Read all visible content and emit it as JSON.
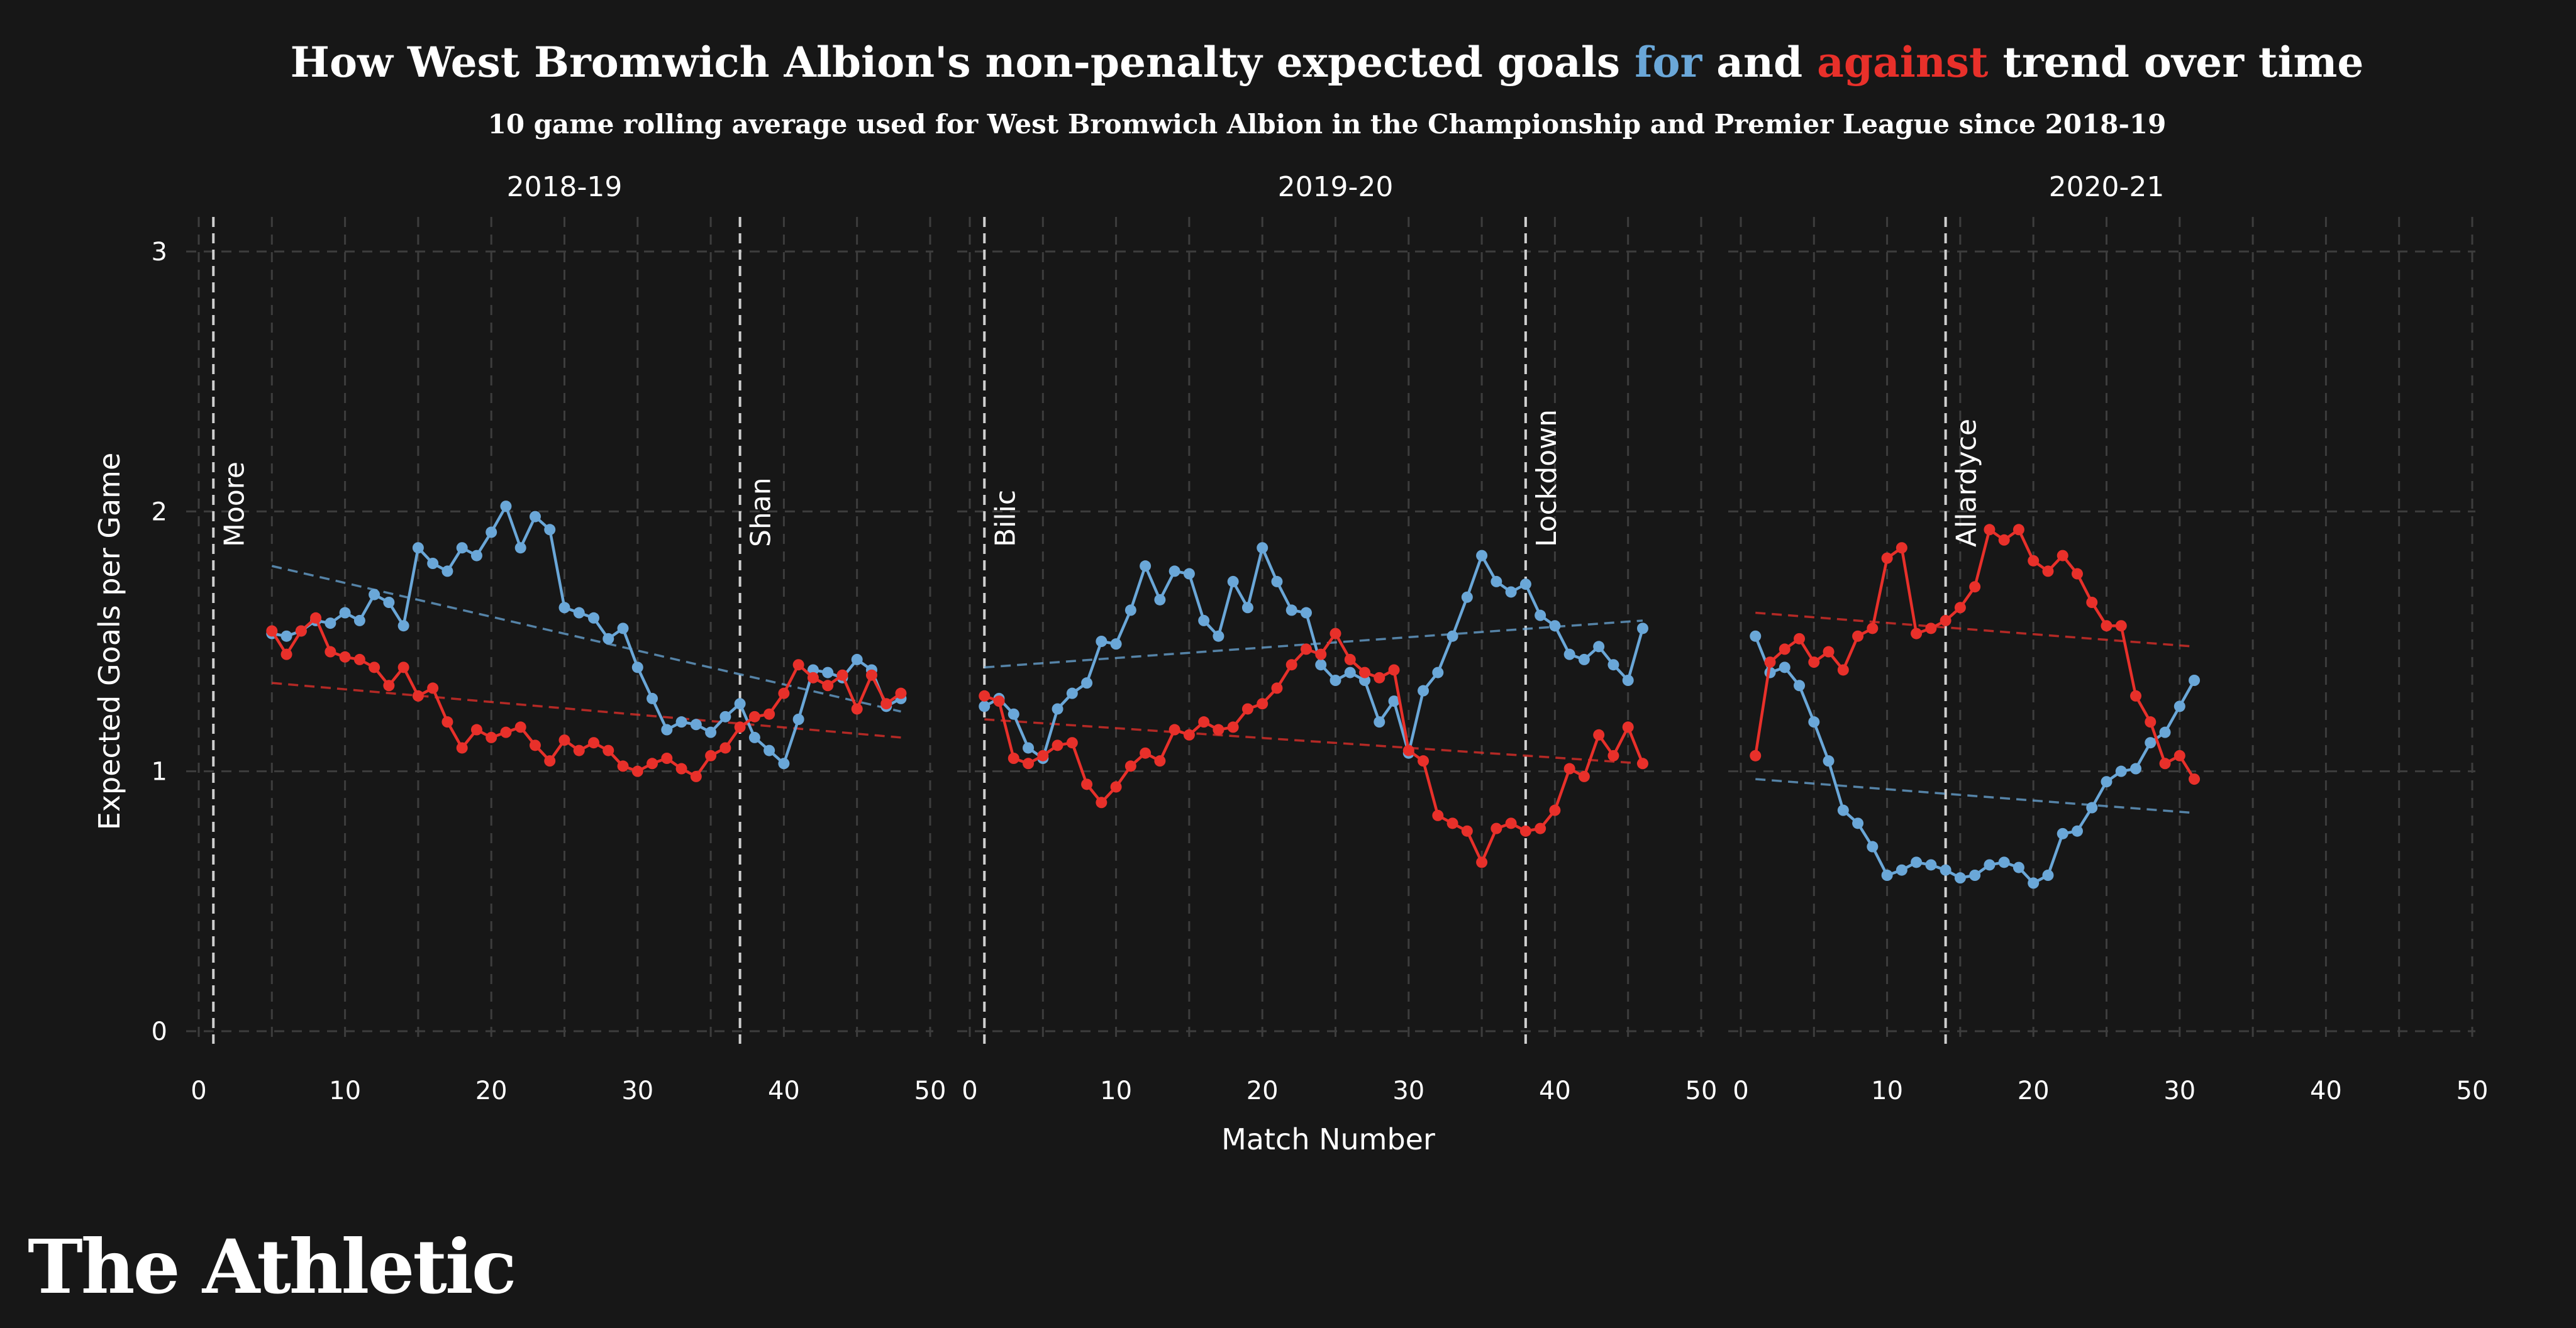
{
  "header": {
    "title_parts": [
      {
        "text": "How West Bromwich Albion's non-penalty expected goals ",
        "color": "#ffffff"
      },
      {
        "text": "for",
        "color": "#6aa7d8"
      },
      {
        "text": " and ",
        "color": "#ffffff"
      },
      {
        "text": "against",
        "color": "#e8302a"
      },
      {
        "text": " trend over time",
        "color": "#ffffff"
      }
    ],
    "subtitle": "10 game rolling average used for West Bromwich Albion in the Championship and Premier League since 2018-19"
  },
  "logo": "The Athletic",
  "colors": {
    "background": "#171717",
    "for": "#6aa7d8",
    "against": "#e8302a",
    "grid": "#3d3d3d",
    "manager_line": "#cfcfcf",
    "text": "#ffffff"
  },
  "chart_data": {
    "type": "line",
    "xlabel": "Match Number",
    "ylabel": "Expected Goals per Game",
    "xlim": [
      0,
      50
    ],
    "ylim": [
      0,
      3
    ],
    "x_ticks": [
      0,
      10,
      20,
      30,
      40,
      50
    ],
    "y_ticks": [
      0,
      1,
      2,
      3
    ],
    "grid": true,
    "panels": [
      {
        "label": "2018-19",
        "markers": [
          {
            "x": 1,
            "label": "Moore"
          },
          {
            "x": 37,
            "label": "Shan"
          }
        ],
        "series": [
          {
            "key": "for",
            "start": 5,
            "values": [
              1.53,
              1.52,
              1.54,
              1.58,
              1.57,
              1.61,
              1.58,
              1.68,
              1.65,
              1.56,
              1.86,
              1.8,
              1.77,
              1.86,
              1.83,
              1.92,
              2.02,
              1.86,
              1.98,
              1.93,
              1.63,
              1.61,
              1.59,
              1.51,
              1.55,
              1.4,
              1.28,
              1.16,
              1.19,
              1.18,
              1.15,
              1.21,
              1.26,
              1.13,
              1.08,
              1.03,
              1.2,
              1.39,
              1.38,
              1.36,
              1.43,
              1.39,
              1.25,
              1.28
            ]
          },
          {
            "key": "against",
            "start": 5,
            "values": [
              1.54,
              1.45,
              1.54,
              1.59,
              1.46,
              1.44,
              1.43,
              1.4,
              1.33,
              1.4,
              1.29,
              1.32,
              1.19,
              1.09,
              1.16,
              1.13,
              1.15,
              1.17,
              1.1,
              1.04,
              1.12,
              1.08,
              1.11,
              1.08,
              1.02,
              1.0,
              1.03,
              1.05,
              1.01,
              0.98,
              1.06,
              1.09,
              1.17,
              1.21,
              1.22,
              1.3,
              1.41,
              1.36,
              1.33,
              1.37,
              1.24,
              1.37,
              1.26,
              1.3
            ]
          }
        ],
        "trends": [
          {
            "key": "for",
            "x": [
              5,
              48
            ],
            "y": [
              1.79,
              1.23
            ]
          },
          {
            "key": "against",
            "x": [
              5,
              48
            ],
            "y": [
              1.34,
              1.13
            ]
          }
        ]
      },
      {
        "label": "2019-20",
        "markers": [
          {
            "x": 1,
            "label": "Bilic"
          },
          {
            "x": 38,
            "label": "Lockdown"
          }
        ],
        "series": [
          {
            "key": "for",
            "start": 1,
            "values": [
              1.25,
              1.28,
              1.22,
              1.09,
              1.05,
              1.24,
              1.3,
              1.34,
              1.5,
              1.49,
              1.62,
              1.79,
              1.66,
              1.77,
              1.76,
              1.58,
              1.52,
              1.73,
              1.63,
              1.86,
              1.73,
              1.62,
              1.61,
              1.41,
              1.35,
              1.38,
              1.35,
              1.19,
              1.27,
              1.07,
              1.31,
              1.38,
              1.52,
              1.67,
              1.83,
              1.73,
              1.69,
              1.72,
              1.6,
              1.56,
              1.45,
              1.43,
              1.48,
              1.41,
              1.35,
              1.55
            ]
          },
          {
            "key": "against",
            "start": 1,
            "values": [
              1.29,
              1.27,
              1.05,
              1.03,
              1.06,
              1.1,
              1.11,
              0.95,
              0.88,
              0.94,
              1.02,
              1.07,
              1.04,
              1.16,
              1.14,
              1.19,
              1.16,
              1.17,
              1.24,
              1.26,
              1.32,
              1.41,
              1.47,
              1.45,
              1.53,
              1.43,
              1.38,
              1.36,
              1.39,
              1.08,
              1.04,
              0.83,
              0.8,
              0.77,
              0.65,
              0.78,
              0.8,
              0.77,
              0.78,
              0.85,
              1.01,
              0.98,
              1.14,
              1.06,
              1.17,
              1.03
            ]
          }
        ],
        "trends": [
          {
            "key": "for",
            "x": [
              1,
              46
            ],
            "y": [
              1.4,
              1.58
            ]
          },
          {
            "key": "against",
            "x": [
              1,
              46
            ],
            "y": [
              1.2,
              1.03
            ]
          }
        ]
      },
      {
        "label": "2020-21",
        "markers": [
          {
            "x": 14,
            "label": "Allardyce"
          }
        ],
        "series": [
          {
            "key": "for",
            "start": 1,
            "values": [
              1.52,
              1.38,
              1.4,
              1.33,
              1.19,
              1.04,
              0.85,
              0.8,
              0.71,
              0.6,
              0.62,
              0.65,
              0.64,
              0.62,
              0.59,
              0.6,
              0.64,
              0.65,
              0.63,
              0.57,
              0.6,
              0.76,
              0.77,
              0.86,
              0.96,
              1.0,
              1.01,
              1.11,
              1.15,
              1.25,
              1.35
            ]
          },
          {
            "key": "against",
            "start": 1,
            "values": [
              1.06,
              1.42,
              1.47,
              1.51,
              1.42,
              1.46,
              1.39,
              1.52,
              1.55,
              1.82,
              1.86,
              1.53,
              1.55,
              1.58,
              1.63,
              1.71,
              1.93,
              1.89,
              1.93,
              1.81,
              1.77,
              1.83,
              1.76,
              1.65,
              1.56,
              1.56,
              1.29,
              1.19,
              1.03,
              1.06,
              0.97
            ]
          }
        ],
        "trends": [
          {
            "key": "for",
            "x": [
              1,
              31
            ],
            "y": [
              0.97,
              0.84
            ]
          },
          {
            "key": "against",
            "x": [
              1,
              31
            ],
            "y": [
              1.61,
              1.48
            ]
          }
        ]
      }
    ]
  }
}
